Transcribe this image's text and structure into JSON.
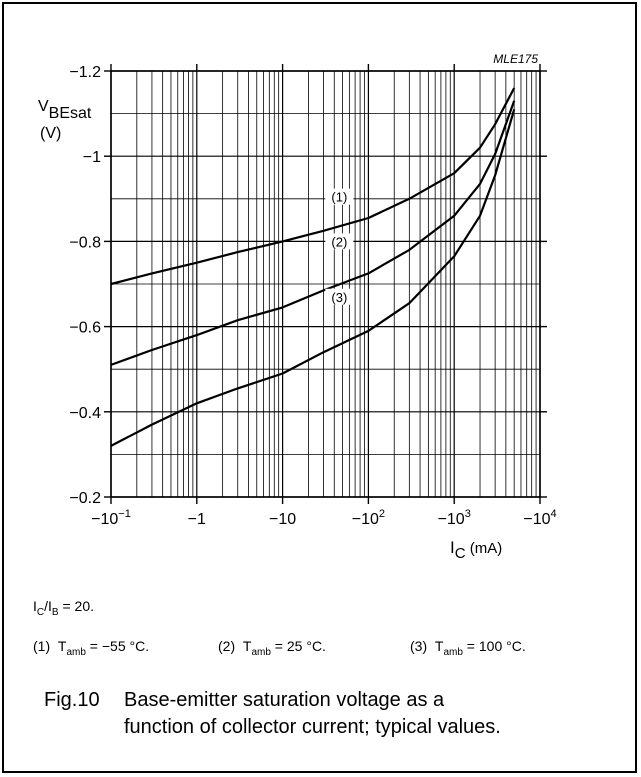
{
  "chart_data": {
    "type": "line",
    "id_label": "MLE175",
    "ylabel": "V",
    "ylabel_sub": "BEsat",
    "ylabel_unit": "(V)",
    "xlabel": "I",
    "xlabel_sub": "C",
    "xlabel_unit": "(mA)",
    "x_scale": "log",
    "xlim": [
      -0.1,
      -10000
    ],
    "ylim": [
      -0.2,
      -1.2
    ],
    "grid": true,
    "y_ticks": [
      {
        "value": -1.2,
        "label": "−1.2"
      },
      {
        "value": -1.0,
        "label": "−1"
      },
      {
        "value": -0.8,
        "label": "−0.8"
      },
      {
        "value": -0.6,
        "label": "−0.6"
      },
      {
        "value": -0.4,
        "label": "−0.4"
      },
      {
        "value": -0.2,
        "label": "−0.2"
      }
    ],
    "x_ticks": [
      {
        "value": -0.1,
        "label": "−10",
        "exp": "−1"
      },
      {
        "value": -1,
        "label": "−1",
        "exp": ""
      },
      {
        "value": -10,
        "label": "−10",
        "exp": ""
      },
      {
        "value": -100,
        "label": "−10",
        "exp": "2"
      },
      {
        "value": -1000,
        "label": "−10",
        "exp": "3"
      },
      {
        "value": -10000,
        "label": "−10",
        "exp": "4"
      }
    ],
    "series": [
      {
        "name": "(1)",
        "x": [
          -0.1,
          -0.3,
          -1,
          -3,
          -10,
          -30,
          -100,
          -300,
          -1000,
          -2000,
          -3000,
          -5000
        ],
        "y": [
          -0.7,
          -0.725,
          -0.75,
          -0.775,
          -0.8,
          -0.825,
          -0.855,
          -0.9,
          -0.96,
          -1.02,
          -1.075,
          -1.16
        ]
      },
      {
        "name": "(2)",
        "x": [
          -0.1,
          -0.3,
          -1,
          -3,
          -10,
          -30,
          -100,
          -300,
          -1000,
          -2000,
          -3000,
          -5000
        ],
        "y": [
          -0.51,
          -0.545,
          -0.58,
          -0.615,
          -0.645,
          -0.685,
          -0.725,
          -0.78,
          -0.86,
          -0.935,
          -1.005,
          -1.13
        ]
      },
      {
        "name": "(3)",
        "x": [
          -0.1,
          -0.3,
          -1,
          -3,
          -10,
          -30,
          -100,
          -300,
          -1000,
          -2000,
          -3000,
          -5000
        ],
        "y": [
          -0.32,
          -0.37,
          -0.42,
          -0.455,
          -0.49,
          -0.54,
          -0.59,
          -0.655,
          -0.765,
          -0.86,
          -0.955,
          -1.11
        ]
      }
    ]
  },
  "notes": {
    "ratio": {
      "i1": "I",
      "s1": "C",
      "slash": "/I",
      "s2": "B",
      "rest": " = 20."
    },
    "conditions": [
      {
        "num": "(1)",
        "t": "T",
        "sub": "amb",
        "text": " = −55 °C."
      },
      {
        "num": "(2)",
        "t": "T",
        "sub": "amb",
        "text": " = 25 °C."
      },
      {
        "num": "(3)",
        "t": "T",
        "sub": "amb",
        "text": " = 100 °C."
      }
    ]
  },
  "caption": {
    "fig": "Fig.10",
    "line1": "Base-emitter saturation voltage as a",
    "line2": "function of collector current; typical values."
  }
}
